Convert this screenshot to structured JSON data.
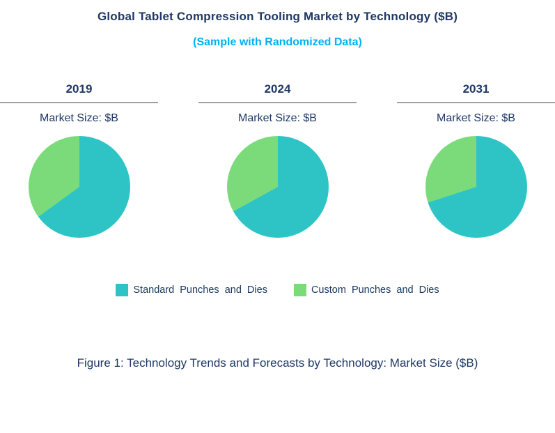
{
  "page": {
    "title": "Global Tablet Compression Tooling Market by Technology ($B)",
    "subtitle": "(Sample with Randomized Data)",
    "caption": "Figure 1: Technology Trends and Forecasts by Technology: Market Size ($B)"
  },
  "colors": {
    "navy": "#1F3864",
    "cyan": "#00B0F0",
    "teal": "#2EC4C6",
    "green": "#7BDB7B"
  },
  "legend": {
    "items": [
      {
        "label": "Standard Punches and Dies",
        "color": "#2EC4C6"
      },
      {
        "label": "Custom Punches and Dies",
        "color": "#7BDB7B"
      }
    ]
  },
  "chart_data": [
    {
      "type": "pie",
      "title": "2019",
      "subtitle": "Market Size: $B",
      "labels": [
        "Standard Punches and Dies",
        "Custom Punches and Dies"
      ],
      "values": [
        65,
        35
      ],
      "colors": [
        "#2EC4C6",
        "#7BDB7B"
      ],
      "legend_position": "bottom-shared"
    },
    {
      "type": "pie",
      "title": "2024",
      "subtitle": "Market Size: $B",
      "labels": [
        "Standard Punches and Dies",
        "Custom Punches and Dies"
      ],
      "values": [
        67,
        33
      ],
      "colors": [
        "#2EC4C6",
        "#7BDB7B"
      ],
      "legend_position": "bottom-shared"
    },
    {
      "type": "pie",
      "title": "2031",
      "subtitle": "Market Size: $B",
      "labels": [
        "Standard Punches and Dies",
        "Custom Punches and Dies"
      ],
      "values": [
        70,
        30
      ],
      "colors": [
        "#2EC4C6",
        "#7BDB7B"
      ],
      "legend_position": "bottom-shared"
    }
  ]
}
